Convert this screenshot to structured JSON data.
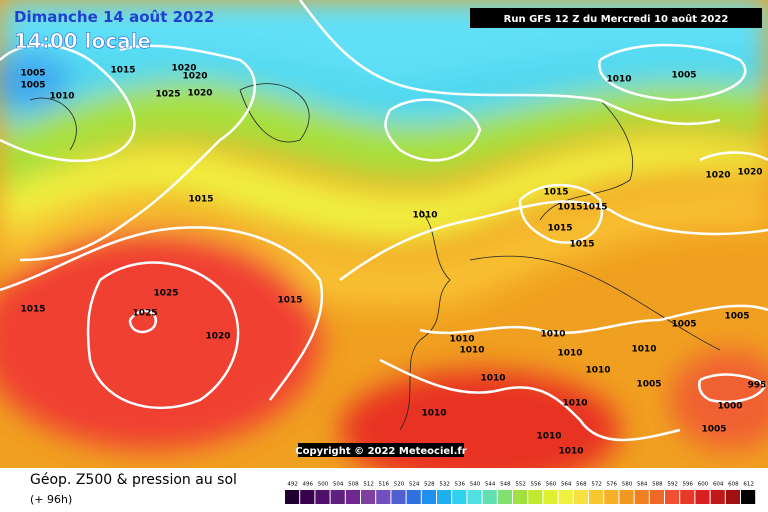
{
  "header": {
    "date": "Dimanche 14 août 2022",
    "time": "14:00 locale",
    "run": "Run GFS 12 Z du Mercredi 10 août 2022"
  },
  "copyright": "Copyright © 2022 Meteociel.fr",
  "footer": {
    "title": "Géop. Z500 & pression au sol",
    "lead": "(+ 96h)"
  },
  "colorbar": {
    "labels": [
      492,
      496,
      500,
      504,
      508,
      512,
      516,
      520,
      524,
      528,
      532,
      536,
      540,
      544,
      548,
      552,
      556,
      560,
      564,
      568,
      572,
      576,
      580,
      584,
      588,
      592,
      596,
      600,
      604,
      608,
      612
    ]
  },
  "isobar_labels": [
    "1005",
    "1005",
    "1010",
    "1015",
    "1020",
    "1020",
    "1025",
    "1020",
    "1010",
    "1005",
    "1015",
    "1010",
    "1015",
    "1015",
    "1015",
    "1015",
    "1015",
    "1020",
    "1020",
    "1025",
    "1025",
    "1020",
    "1015",
    "1015",
    "1010",
    "1010",
    "1010",
    "1010",
    "1010",
    "1010",
    "1010",
    "1005",
    "1005",
    "1005",
    "1010",
    "1010",
    "995",
    "1000",
    "1005",
    "1010",
    "1010"
  ]
}
